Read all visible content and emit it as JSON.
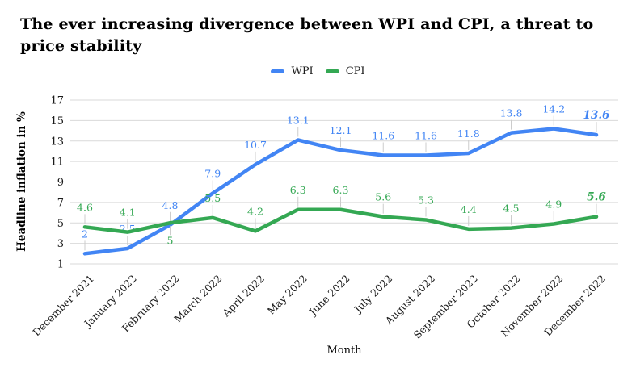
{
  "title": "The ever increasing divergence between WPI and CPI, a threat to price stability",
  "legend": {
    "items": [
      {
        "label": "WPI",
        "color": "#4285f4"
      },
      {
        "label": "CPI",
        "color": "#34a853"
      }
    ]
  },
  "axes": {
    "y_title": "Headline inflation in %",
    "x_title": "Month"
  },
  "chart_data": {
    "type": "line",
    "title": "The ever increasing divergence between WPI and CPI, a threat to price stability",
    "xlabel": "Month",
    "ylabel": "Headline inflation in %",
    "ylim": [
      1,
      17
    ],
    "y_ticks": [
      1,
      3,
      5,
      7,
      9,
      11,
      13,
      15,
      17
    ],
    "grid": true,
    "legend_position": "top",
    "categories": [
      "December 2021",
      "January 2022",
      "February 2022",
      "March 2022",
      "April 2022",
      "May 2022",
      "June 2022",
      "July 2022",
      "August 2022",
      "September 2022",
      "October 2022",
      "November 2022",
      "December 2022"
    ],
    "series": [
      {
        "name": "WPI",
        "color": "#4285f4",
        "values": [
          2,
          2.5,
          4.8,
          7.9,
          10.7,
          13.1,
          12.1,
          11.6,
          11.6,
          11.8,
          13.8,
          14.2,
          13.6
        ],
        "point_labels": [
          "2",
          "2.5",
          "4.8",
          "7.9",
          "10.7",
          "13.1",
          "12.1",
          "11.6",
          "11.6",
          "11.8",
          "13.8",
          "14.2",
          "13.6"
        ]
      },
      {
        "name": "CPI",
        "color": "#34a853",
        "values": [
          4.6,
          4.1,
          5,
          5.5,
          4.2,
          6.3,
          6.3,
          5.6,
          5.3,
          4.4,
          4.5,
          4.9,
          5.6
        ],
        "point_labels": [
          "4.6",
          "4.1",
          "5",
          "5.5",
          "4.2",
          "6.3",
          "6.3",
          "5.6",
          "5.3",
          "4.4",
          "4.5",
          "4.9",
          "5.6"
        ]
      }
    ],
    "label_below": {
      "CPI": [
        2
      ],
      "WPI": []
    },
    "last_label_emphasis": "bold-italic",
    "gridline_color": "#d9d9d9",
    "stem_color": "#cccccc",
    "tick_text_color": "#1a1a1a"
  }
}
